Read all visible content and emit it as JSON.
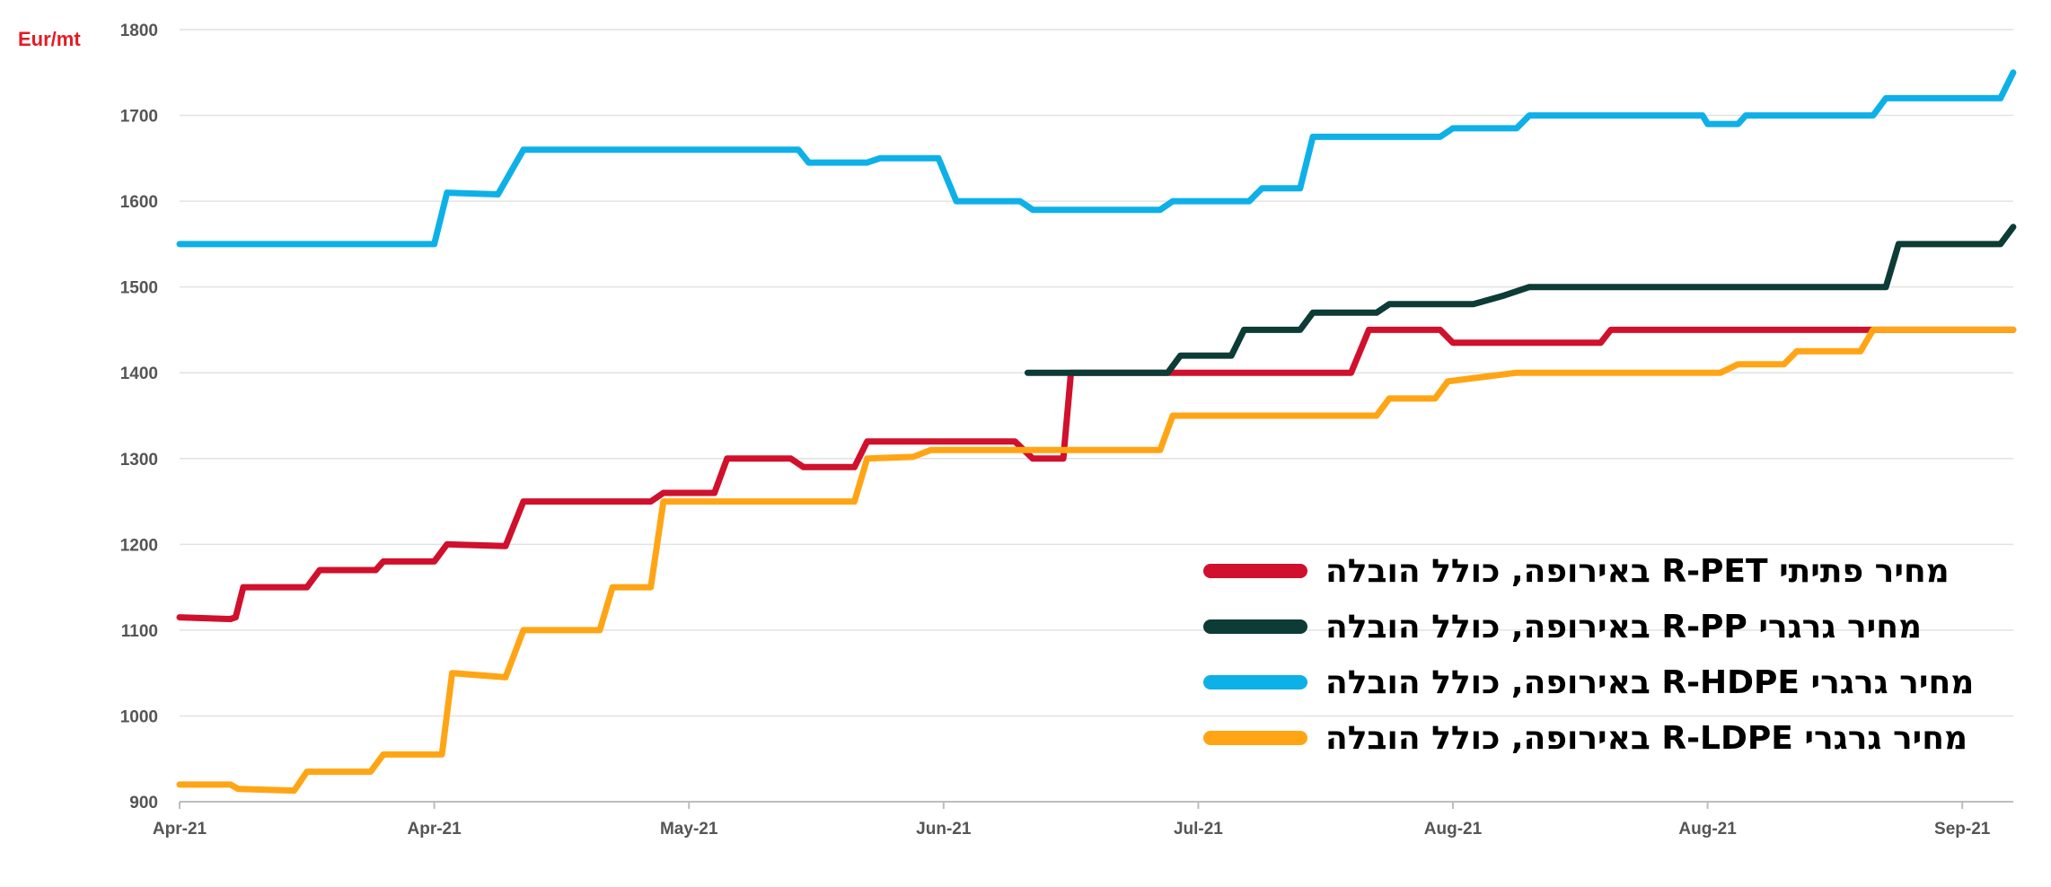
{
  "chart_data": {
    "type": "line",
    "unit_label": "Eur/mt",
    "ylim": [
      900,
      1800
    ],
    "yticks": [
      "900",
      "1000",
      "1100",
      "1200",
      "1300",
      "1400",
      "1500",
      "1600",
      "1700",
      "1800"
    ],
    "xlim": [
      0,
      7.2
    ],
    "xticks": [
      {
        "pos": 0,
        "label": "Apr-21"
      },
      {
        "pos": 1,
        "label": "Apr-21"
      },
      {
        "pos": 2,
        "label": "May-21"
      },
      {
        "pos": 3,
        "label": "Jun-21"
      },
      {
        "pos": 4,
        "label": "Jul-21"
      },
      {
        "pos": 5,
        "label": "Aug-21"
      },
      {
        "pos": 6,
        "label": "Aug-21"
      },
      {
        "pos": 7,
        "label": "Sep-21"
      }
    ],
    "grid": true,
    "legend_position": "bottom-right",
    "series": [
      {
        "name": "מחיר פתיתי R-PET באירופה, כולל הובלה",
        "color": "#d0102c",
        "points": [
          [
            0,
            1115
          ],
          [
            0.2,
            1113
          ],
          [
            0.22,
            1115
          ],
          [
            0.25,
            1150
          ],
          [
            0.5,
            1150
          ],
          [
            0.55,
            1170
          ],
          [
            0.77,
            1170
          ],
          [
            0.8,
            1180
          ],
          [
            1.0,
            1180
          ],
          [
            1.05,
            1200
          ],
          [
            1.28,
            1198
          ],
          [
            1.35,
            1250
          ],
          [
            1.85,
            1250
          ],
          [
            1.9,
            1260
          ],
          [
            2.1,
            1260
          ],
          [
            2.15,
            1300
          ],
          [
            2.4,
            1300
          ],
          [
            2.45,
            1290
          ],
          [
            2.65,
            1290
          ],
          [
            2.7,
            1320
          ],
          [
            3.28,
            1320
          ],
          [
            3.35,
            1300
          ],
          [
            3.47,
            1300
          ],
          [
            3.5,
            1400
          ],
          [
            4.6,
            1400
          ],
          [
            4.67,
            1450
          ],
          [
            4.95,
            1450
          ],
          [
            5.0,
            1435
          ],
          [
            5.58,
            1435
          ],
          [
            5.62,
            1450
          ],
          [
            7.2,
            1450
          ]
        ]
      },
      {
        "name": "מחיר גרגרי R-PP באירופה, כולל הובלה",
        "color": "#0d3b36",
        "points": [
          [
            3.33,
            1400
          ],
          [
            3.88,
            1400
          ],
          [
            3.93,
            1420
          ],
          [
            4.13,
            1420
          ],
          [
            4.18,
            1450
          ],
          [
            4.4,
            1450
          ],
          [
            4.45,
            1470
          ],
          [
            4.7,
            1470
          ],
          [
            4.75,
            1480
          ],
          [
            5.08,
            1480
          ],
          [
            5.2,
            1490
          ],
          [
            5.3,
            1500
          ],
          [
            6.7,
            1500
          ],
          [
            6.75,
            1550
          ],
          [
            7.15,
            1550
          ],
          [
            7.2,
            1570
          ]
        ]
      },
      {
        "name": "מחיר גרגרי R-HDPE באירופה, כולל הובלה",
        "color": "#0eb0e8",
        "points": [
          [
            0,
            1550
          ],
          [
            1.0,
            1550
          ],
          [
            1.05,
            1610
          ],
          [
            1.25,
            1608
          ],
          [
            1.35,
            1660
          ],
          [
            2.2,
            1660
          ],
          [
            2.43,
            1660
          ],
          [
            2.47,
            1645
          ],
          [
            2.7,
            1645
          ],
          [
            2.75,
            1650
          ],
          [
            2.98,
            1650
          ],
          [
            3.05,
            1600
          ],
          [
            3.3,
            1600
          ],
          [
            3.35,
            1590
          ],
          [
            3.85,
            1590
          ],
          [
            3.9,
            1600
          ],
          [
            4.2,
            1600
          ],
          [
            4.25,
            1615
          ],
          [
            4.4,
            1615
          ],
          [
            4.45,
            1675
          ],
          [
            4.95,
            1675
          ],
          [
            5.0,
            1685
          ],
          [
            5.25,
            1685
          ],
          [
            5.3,
            1700
          ],
          [
            5.98,
            1700
          ],
          [
            6.0,
            1690
          ],
          [
            6.12,
            1690
          ],
          [
            6.15,
            1700
          ],
          [
            6.65,
            1700
          ],
          [
            6.7,
            1720
          ],
          [
            7.15,
            1720
          ],
          [
            7.2,
            1750
          ]
        ]
      },
      {
        "name": "מחיר גרגרי R-LDPE באירופה, כולל הובלה",
        "color": "#ffa515",
        "points": [
          [
            0,
            920
          ],
          [
            0.2,
            920
          ],
          [
            0.23,
            915
          ],
          [
            0.45,
            913
          ],
          [
            0.5,
            935
          ],
          [
            0.75,
            935
          ],
          [
            0.8,
            955
          ],
          [
            1.03,
            955
          ],
          [
            1.07,
            1050
          ],
          [
            1.28,
            1045
          ],
          [
            1.35,
            1100
          ],
          [
            1.65,
            1100
          ],
          [
            1.7,
            1150
          ],
          [
            1.85,
            1150
          ],
          [
            1.9,
            1250
          ],
          [
            2.65,
            1250
          ],
          [
            2.7,
            1300
          ],
          [
            2.88,
            1302
          ],
          [
            2.95,
            1310
          ],
          [
            3.85,
            1310
          ],
          [
            3.9,
            1350
          ],
          [
            4.7,
            1350
          ],
          [
            4.75,
            1370
          ],
          [
            4.93,
            1370
          ],
          [
            4.98,
            1390
          ],
          [
            5.25,
            1400
          ],
          [
            6.05,
            1400
          ],
          [
            6.12,
            1410
          ],
          [
            6.3,
            1410
          ],
          [
            6.35,
            1425
          ],
          [
            6.6,
            1425
          ],
          [
            6.65,
            1450
          ],
          [
            7.2,
            1450
          ]
        ]
      }
    ]
  }
}
